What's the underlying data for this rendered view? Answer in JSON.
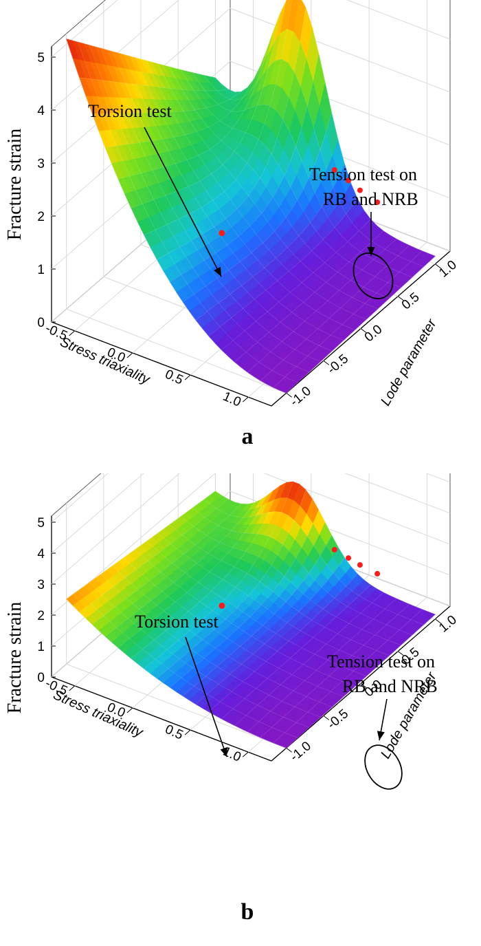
{
  "chart_data": [
    {
      "type": "surface3d",
      "panel_label": "a",
      "zlabel": "Fracture strain",
      "xlabel": "Stress triaxiality",
      "ylabel": "Lode parameter",
      "z_ticks": [
        "0",
        "1",
        "2",
        "3",
        "4",
        "5"
      ],
      "x_ticks": [
        "-0.5",
        "0.0",
        "0.5",
        "1.0"
      ],
      "y_ticks": [
        "-1.0",
        "-0.5",
        "0.0",
        "0.5",
        "1.0"
      ],
      "zlim": [
        0,
        5.2
      ],
      "xlim": [
        -0.7,
        1.2
      ],
      "ylim": [
        -1.2,
        1.2
      ],
      "colormap": "rainbow",
      "surface": {
        "x": [
          -0.7,
          1.2
        ],
        "y": [
          -1.0,
          1.0
        ],
        "z_corners": {
          "x_min_y_min": 5.1,
          "x_min_y_max": 1.9,
          "x_max_y_min": 0.0,
          "x_max_y_max": 0.15,
          "ridge_peak_xy": [
            0.0,
            1.0
          ],
          "ridge_peak_z": 4.1
        }
      },
      "points": [
        {
          "name": "Torsion test",
          "x": 0.0,
          "y": 0.0,
          "z": 0.8
        },
        {
          "name": "Tension test on RB and NRB",
          "x": 0.33,
          "y": 1.0,
          "z": 1.05
        },
        {
          "name": "Tension test on RB and NRB",
          "x": 0.45,
          "y": 1.0,
          "z": 0.95
        },
        {
          "name": "Tension test on RB and NRB",
          "x": 0.55,
          "y": 1.0,
          "z": 0.85
        },
        {
          "name": "Tension test on RB and NRB",
          "x": 0.7,
          "y": 1.0,
          "z": 0.75
        }
      ],
      "annotations": [
        {
          "text": "Torsion test"
        },
        {
          "text": [
            "Tension test on",
            "RB and NRB"
          ]
        }
      ],
      "point_color": "#ff1a1a"
    },
    {
      "type": "surface3d",
      "panel_label": "b",
      "zlabel": "Fracture strain",
      "xlabel": "Stress triaxiality",
      "ylabel": "Lode parameter",
      "z_ticks": [
        "0",
        "1",
        "2",
        "3",
        "4",
        "5"
      ],
      "x_ticks": [
        "-0.5",
        "0.0",
        "0.5",
        "1.0"
      ],
      "y_ticks": [
        "-1.0",
        "-0.5",
        "0.0",
        "0.5",
        "1.0"
      ],
      "zlim": [
        0,
        5.2
      ],
      "xlim": [
        -0.7,
        1.2
      ],
      "ylim": [
        -1.2,
        1.2
      ],
      "colormap": "rainbow",
      "surface": {
        "x": [
          -0.7,
          1.2
        ],
        "y": [
          -1.0,
          1.0
        ],
        "z_corners": {
          "x_min_y_min": 2.1,
          "x_min_y_max": 1.4,
          "x_max_y_min": 0.0,
          "x_max_y_max": 0.15,
          "ridge_peak_xy": [
            0.0,
            1.0
          ],
          "ridge_peak_z": 2.7
        }
      },
      "points": [
        {
          "name": "Torsion test",
          "x": 0.0,
          "y": 0.0,
          "z": 0.8
        },
        {
          "name": "Tension test on RB and NRB",
          "x": 0.33,
          "y": 1.0,
          "z": 1.0
        },
        {
          "name": "Tension test on RB and NRB",
          "x": 0.45,
          "y": 1.0,
          "z": 0.9
        },
        {
          "name": "Tension test on RB and NRB",
          "x": 0.55,
          "y": 1.0,
          "z": 0.82
        },
        {
          "name": "Tension test on RB and NRB",
          "x": 0.7,
          "y": 1.0,
          "z": 0.75
        }
      ],
      "annotations": [
        {
          "text": "Torsion test"
        },
        {
          "text": [
            "Tension test on",
            "RB and NRB"
          ]
        }
      ],
      "point_color": "#ff1a1a"
    }
  ]
}
